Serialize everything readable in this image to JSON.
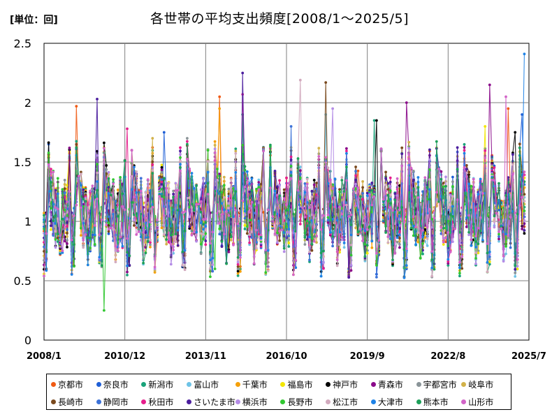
{
  "unit_label": "[単位：回]",
  "chart_data": {
    "type": "line",
    "title": "各世帯の平均支出頻度[2008/1～2025/5]",
    "xlabel": "",
    "ylabel": "",
    "ylim": [
      0,
      2.5
    ],
    "y_ticks": [
      "0",
      "0.5",
      "1",
      "1.5",
      "2",
      "2.5"
    ],
    "x_ticks": [
      "2008/1",
      "2010/12",
      "2013/11",
      "2016/10",
      "2019/9",
      "2022/8",
      "2025/7"
    ],
    "x_range": [
      "2008/1",
      "2025/7"
    ],
    "grid": true,
    "legend_position": "bottom",
    "monthly_profile_note": "",
    "series": [
      {
        "name": "京都市",
        "color": "#f05a14",
        "peaks": [
          [
            "2009/3",
            1.97
          ],
          [
            "2014/5",
            2.05
          ],
          [
            "2024/10",
            1.95
          ]
        ]
      },
      {
        "name": "奈良市",
        "color": "#1f5fd6",
        "peaks": [
          [
            "2012/5",
            1.75
          ],
          [
            "2025/4",
            1.9
          ]
        ]
      },
      {
        "name": "新潟市",
        "color": "#1aa37a",
        "peaks": [
          [
            "2015/3",
            1.9
          ],
          [
            "2019/12",
            1.85
          ]
        ]
      },
      {
        "name": "富山市",
        "color": "#6ec3e6",
        "peaks": [
          [
            "2018/3",
            1.9
          ]
        ]
      },
      {
        "name": "千葉市",
        "color": "#f5a00a",
        "peaks": [
          [
            "2014/5",
            1.95
          ]
        ]
      },
      {
        "name": "福島市",
        "color": "#f2e600",
        "peaks": [
          [
            "2023/12",
            1.8
          ]
        ]
      },
      {
        "name": "神戸市",
        "color": "#000000",
        "peaks": [
          [
            "2020/1",
            1.85
          ],
          [
            "2025/1",
            1.75
          ]
        ]
      },
      {
        "name": "青森市",
        "color": "#8a0a8a",
        "peaks": [
          [
            "2024/2",
            2.15
          ],
          [
            "2021/2",
            2.0
          ]
        ]
      },
      {
        "name": "宇都宮市",
        "color": "#8a9498",
        "peaks": [
          [
            "2013/3",
            1.7
          ]
        ]
      },
      {
        "name": "岐阜市",
        "color": "#d2b24a",
        "peaks": [
          [
            "2011/12",
            1.7
          ]
        ]
      },
      {
        "name": "長崎市",
        "color": "#7a4a1e",
        "peaks": [
          [
            "2018/3",
            2.17
          ]
        ]
      },
      {
        "name": "静岡市",
        "color": "#3c72d8",
        "peaks": [
          [
            "2016/12",
            1.8
          ]
        ]
      },
      {
        "name": "秋田市",
        "color": "#e61e8c",
        "peaks": [
          [
            "2011/1",
            1.78
          ],
          [
            "2015/3",
            2.07
          ]
        ]
      },
      {
        "name": "さいたま市",
        "color": "#4b1e9e",
        "peaks": [
          [
            "2015/3",
            2.25
          ],
          [
            "2009/12",
            2.03
          ]
        ]
      },
      {
        "name": "横浜市",
        "color": "#b48ce6",
        "peaks": [
          [
            "2018/6",
            1.95
          ]
        ]
      },
      {
        "name": "長野市",
        "color": "#32c832",
        "peaks": [
          [
            "2010/3",
            0.25
          ],
          [
            "2014/3",
            0.6
          ]
        ]
      },
      {
        "name": "松江市",
        "color": "#d2aabe",
        "peaks": [
          [
            "2017/4",
            2.19
          ]
        ]
      },
      {
        "name": "大津市",
        "color": "#1e82e6",
        "peaks": [
          [
            "2025/5",
            2.41
          ]
        ]
      },
      {
        "name": "熊本市",
        "color": "#1ea05a",
        "peaks": [
          [
            "2013/3",
            1.65
          ]
        ]
      },
      {
        "name": "山形市",
        "color": "#d264c8",
        "peaks": [
          [
            "2024/9",
            2.05
          ]
        ]
      }
    ]
  }
}
